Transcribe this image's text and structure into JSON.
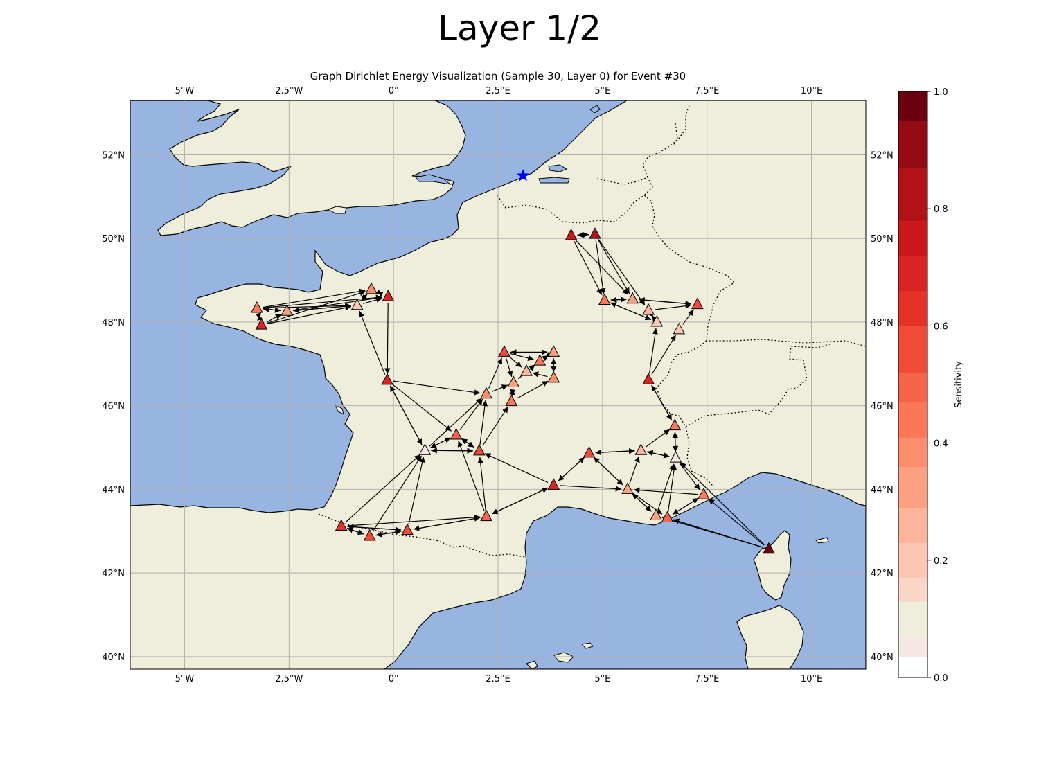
{
  "figure": {
    "suptitle": "Layer 1/2",
    "title": "Graph Dirichlet Energy Visualization (Sample 30, Layer 0) for Event #30"
  },
  "colors": {
    "land": "#efeedb",
    "ocean": "#97b5e0",
    "grid": "#b0b0b0",
    "epicenter": "#0000ff",
    "arrow": "#000000"
  },
  "map": {
    "projection": "PlateCarree",
    "lon_range": [
      -6.3,
      11.3
    ],
    "lat_range": [
      39.7,
      53.3
    ],
    "xticks": [
      {
        "value": -5,
        "label": "5°W"
      },
      {
        "value": -2.5,
        "label": "2.5°W"
      },
      {
        "value": 0,
        "label": "0°"
      },
      {
        "value": 2.5,
        "label": "2.5°E"
      },
      {
        "value": 5,
        "label": "5°E"
      },
      {
        "value": 7.5,
        "label": "7.5°E"
      },
      {
        "value": 10,
        "label": "10°E"
      }
    ],
    "yticks": [
      {
        "value": 40,
        "label": "40°N"
      },
      {
        "value": 42,
        "label": "42°N"
      },
      {
        "value": 44,
        "label": "44°N"
      },
      {
        "value": 46,
        "label": "46°N"
      },
      {
        "value": 48,
        "label": "48°N"
      },
      {
        "value": 50,
        "label": "50°N"
      },
      {
        "value": 52,
        "label": "52°N"
      }
    ],
    "gridlines": true,
    "borders": "dotted"
  },
  "chart_data": {
    "type": "scatter",
    "marker_epicenter": {
      "lon": 3.1,
      "lat": 51.5,
      "symbol": "star"
    },
    "stations": [
      {
        "id": 0,
        "lon": -3.27,
        "lat": 48.33,
        "s": 0.45
      },
      {
        "id": 1,
        "lon": -3.16,
        "lat": 47.93,
        "s": 0.72
      },
      {
        "id": 2,
        "lon": -2.55,
        "lat": 48.26,
        "s": 0.35
      },
      {
        "id": 3,
        "lon": -0.87,
        "lat": 48.4,
        "s": 0.22
      },
      {
        "id": 4,
        "lon": -0.53,
        "lat": 48.78,
        "s": 0.38
      },
      {
        "id": 5,
        "lon": -0.13,
        "lat": 48.61,
        "s": 0.72
      },
      {
        "id": 6,
        "lon": -0.15,
        "lat": 46.61,
        "s": 0.72
      },
      {
        "id": 7,
        "lon": 0.75,
        "lat": 44.93,
        "s": 0.05
      },
      {
        "id": 8,
        "lon": 1.5,
        "lat": 45.3,
        "s": 0.5
      },
      {
        "id": 9,
        "lon": 2.05,
        "lat": 44.92,
        "s": 0.55
      },
      {
        "id": 10,
        "lon": 2.22,
        "lat": 46.28,
        "s": 0.4
      },
      {
        "id": 11,
        "lon": 2.65,
        "lat": 47.28,
        "s": 0.58
      },
      {
        "id": 12,
        "lon": 2.82,
        "lat": 46.1,
        "s": 0.45
      },
      {
        "id": 13,
        "lon": 2.87,
        "lat": 46.55,
        "s": 0.35
      },
      {
        "id": 14,
        "lon": 3.18,
        "lat": 46.82,
        "s": 0.25
      },
      {
        "id": 15,
        "lon": 3.5,
        "lat": 47.07,
        "s": 0.42
      },
      {
        "id": 16,
        "lon": 3.83,
        "lat": 47.28,
        "s": 0.3
      },
      {
        "id": 17,
        "lon": 3.83,
        "lat": 46.66,
        "s": 0.4
      },
      {
        "id": 18,
        "lon": -1.25,
        "lat": 43.12,
        "s": 0.62
      },
      {
        "id": 19,
        "lon": -0.57,
        "lat": 42.88,
        "s": 0.55
      },
      {
        "id": 20,
        "lon": 0.33,
        "lat": 43.02,
        "s": 0.6
      },
      {
        "id": 21,
        "lon": 2.22,
        "lat": 43.35,
        "s": 0.48
      },
      {
        "id": 22,
        "lon": 3.83,
        "lat": 44.1,
        "s": 0.7
      },
      {
        "id": 23,
        "lon": 4.68,
        "lat": 44.87,
        "s": 0.55
      },
      {
        "id": 24,
        "lon": 5.6,
        "lat": 44.0,
        "s": 0.32
      },
      {
        "id": 25,
        "lon": 5.92,
        "lat": 44.93,
        "s": 0.28
      },
      {
        "id": 26,
        "lon": 6.75,
        "lat": 44.75,
        "s": 0.05
      },
      {
        "id": 27,
        "lon": 6.28,
        "lat": 43.37,
        "s": 0.35
      },
      {
        "id": 28,
        "lon": 6.55,
        "lat": 43.32,
        "s": 0.5
      },
      {
        "id": 29,
        "lon": 7.42,
        "lat": 43.87,
        "s": 0.45
      },
      {
        "id": 30,
        "lon": 8.98,
        "lat": 42.57,
        "s": 0.98
      },
      {
        "id": 31,
        "lon": 6.73,
        "lat": 45.52,
        "s": 0.45
      },
      {
        "id": 32,
        "lon": 6.1,
        "lat": 46.62,
        "s": 0.7
      },
      {
        "id": 33,
        "lon": 6.3,
        "lat": 48.0,
        "s": 0.22
      },
      {
        "id": 34,
        "lon": 6.83,
        "lat": 47.82,
        "s": 0.22
      },
      {
        "id": 35,
        "lon": 7.27,
        "lat": 48.42,
        "s": 0.6
      },
      {
        "id": 36,
        "lon": 5.05,
        "lat": 48.52,
        "s": 0.45
      },
      {
        "id": 37,
        "lon": 5.72,
        "lat": 48.55,
        "s": 0.35
      },
      {
        "id": 38,
        "lon": 6.1,
        "lat": 48.28,
        "s": 0.28
      },
      {
        "id": 39,
        "lon": 4.25,
        "lat": 50.07,
        "s": 0.75
      },
      {
        "id": 40,
        "lon": 4.82,
        "lat": 50.1,
        "s": 0.8
      }
    ],
    "edges": [
      [
        0,
        1
      ],
      [
        1,
        0
      ],
      [
        0,
        2
      ],
      [
        2,
        0
      ],
      [
        0,
        3
      ],
      [
        0,
        4
      ],
      [
        0,
        5
      ],
      [
        1,
        2
      ],
      [
        1,
        3
      ],
      [
        1,
        4
      ],
      [
        2,
        3
      ],
      [
        3,
        2
      ],
      [
        2,
        5
      ],
      [
        3,
        4
      ],
      [
        4,
        3
      ],
      [
        3,
        5
      ],
      [
        5,
        4
      ],
      [
        4,
        5
      ],
      [
        5,
        6
      ],
      [
        6,
        3
      ],
      [
        6,
        7
      ],
      [
        7,
        6
      ],
      [
        6,
        8
      ],
      [
        6,
        10
      ],
      [
        7,
        8
      ],
      [
        8,
        7
      ],
      [
        7,
        9
      ],
      [
        9,
        7
      ],
      [
        7,
        10
      ],
      [
        8,
        9
      ],
      [
        9,
        8
      ],
      [
        8,
        10
      ],
      [
        9,
        10
      ],
      [
        9,
        12
      ],
      [
        10,
        11
      ],
      [
        10,
        13
      ],
      [
        11,
        13
      ],
      [
        11,
        14
      ],
      [
        11,
        15
      ],
      [
        11,
        16
      ],
      [
        16,
        11
      ],
      [
        12,
        13
      ],
      [
        13,
        12
      ],
      [
        13,
        15
      ],
      [
        12,
        17
      ],
      [
        14,
        15
      ],
      [
        15,
        16
      ],
      [
        16,
        15
      ],
      [
        17,
        14
      ],
      [
        17,
        16
      ],
      [
        16,
        17
      ],
      [
        18,
        19
      ],
      [
        19,
        18
      ],
      [
        18,
        20
      ],
      [
        20,
        18
      ],
      [
        19,
        20
      ],
      [
        20,
        19
      ],
      [
        18,
        7
      ],
      [
        19,
        7
      ],
      [
        20,
        7
      ],
      [
        18,
        21
      ],
      [
        20,
        21
      ],
      [
        21,
        20
      ],
      [
        21,
        9
      ],
      [
        21,
        8
      ],
      [
        21,
        22
      ],
      [
        22,
        21
      ],
      [
        22,
        9
      ],
      [
        22,
        23
      ],
      [
        23,
        22
      ],
      [
        23,
        24
      ],
      [
        24,
        23
      ],
      [
        22,
        24
      ],
      [
        23,
        25
      ],
      [
        25,
        23
      ],
      [
        24,
        25
      ],
      [
        25,
        26
      ],
      [
        26,
        25
      ],
      [
        25,
        31
      ],
      [
        26,
        31
      ],
      [
        31,
        26
      ],
      [
        31,
        32
      ],
      [
        32,
        31
      ],
      [
        24,
        27
      ],
      [
        27,
        24
      ],
      [
        24,
        28
      ],
      [
        28,
        26
      ],
      [
        27,
        26
      ],
      [
        26,
        29
      ],
      [
        29,
        28
      ],
      [
        28,
        29
      ],
      [
        29,
        24
      ],
      [
        30,
        27
      ],
      [
        30,
        28
      ],
      [
        30,
        29
      ],
      [
        30,
        26
      ],
      [
        32,
        33
      ],
      [
        32,
        34
      ],
      [
        34,
        35
      ],
      [
        33,
        38
      ],
      [
        38,
        33
      ],
      [
        36,
        33
      ],
      [
        33,
        36
      ],
      [
        36,
        37
      ],
      [
        37,
        36
      ],
      [
        37,
        35
      ],
      [
        35,
        37
      ],
      [
        38,
        35
      ],
      [
        39,
        40
      ],
      [
        40,
        39
      ],
      [
        39,
        36
      ],
      [
        39,
        37
      ],
      [
        40,
        36
      ],
      [
        40,
        37
      ],
      [
        40,
        38
      ]
    ],
    "colorbar": {
      "label": "Sensitivity",
      "ticks": [
        {
          "value": 0.0,
          "label": "0.0"
        },
        {
          "value": 0.2,
          "label": "0.2"
        },
        {
          "value": 0.4,
          "label": "0.4"
        },
        {
          "value": 0.6,
          "label": "0.6"
        },
        {
          "value": 0.8,
          "label": "0.8"
        },
        {
          "value": 1.0,
          "label": "1.0"
        }
      ],
      "levels": [
        {
          "from": 0.0,
          "to": 0.035,
          "color": "#ffffff"
        },
        {
          "from": 0.035,
          "to": 0.07,
          "color": "#f5e7e3"
        },
        {
          "from": 0.07,
          "to": 0.13,
          "color": "#efeedb"
        },
        {
          "from": 0.13,
          "to": 0.17,
          "color": "#fbd5c5"
        },
        {
          "from": 0.17,
          "to": 0.23,
          "color": "#fbc7b2"
        },
        {
          "from": 0.23,
          "to": 0.29,
          "color": "#fcb49b"
        },
        {
          "from": 0.29,
          "to": 0.36,
          "color": "#fca082"
        },
        {
          "from": 0.36,
          "to": 0.41,
          "color": "#fc8d6d"
        },
        {
          "from": 0.41,
          "to": 0.47,
          "color": "#fb7758"
        },
        {
          "from": 0.47,
          "to": 0.52,
          "color": "#f6654a"
        },
        {
          "from": 0.52,
          "to": 0.6,
          "color": "#f04b37"
        },
        {
          "from": 0.6,
          "to": 0.66,
          "color": "#e53228"
        },
        {
          "from": 0.66,
          "to": 0.72,
          "color": "#d82422"
        },
        {
          "from": 0.72,
          "to": 0.78,
          "color": "#ca181d"
        },
        {
          "from": 0.78,
          "to": 0.87,
          "color": "#b11218"
        },
        {
          "from": 0.87,
          "to": 0.95,
          "color": "#940b13"
        },
        {
          "from": 0.95,
          "to": 1.0,
          "color": "#6b010e"
        }
      ]
    }
  }
}
